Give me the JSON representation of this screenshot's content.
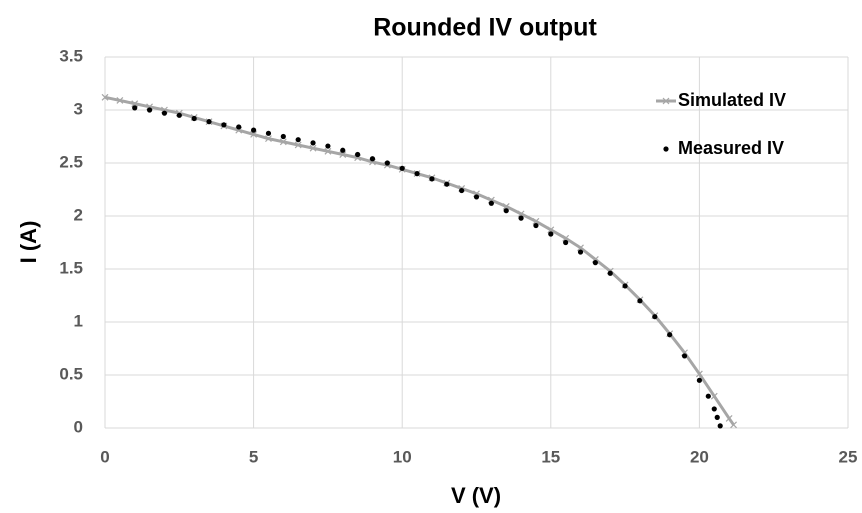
{
  "chart_data": {
    "type": "scatter",
    "title": "Rounded IV output",
    "x_label": "V (V)",
    "y_label": "I (A)",
    "xlim": [
      0,
      25
    ],
    "xticks": [
      0,
      5,
      10,
      15,
      20,
      25
    ],
    "ylim": [
      0,
      3.5
    ],
    "yticks": [
      0,
      0.5,
      1,
      1.5,
      2,
      2.5,
      3,
      3.5
    ],
    "grid": true,
    "legend": "upper right",
    "series": [
      {
        "name": "Simulated IV",
        "color": "#a6a6a6",
        "style": "line-x",
        "x": [
          0,
          0.5,
          1,
          1.5,
          2,
          2.5,
          3,
          3.5,
          4,
          4.5,
          5,
          5.5,
          6,
          6.5,
          7,
          7.5,
          8,
          8.5,
          9,
          9.5,
          10,
          10.5,
          11,
          11.5,
          12,
          12.5,
          13,
          13.5,
          14,
          14.5,
          15,
          15.5,
          16,
          16.5,
          17,
          17.5,
          18,
          18.5,
          19,
          19.5,
          20,
          20.5,
          21,
          21.15
        ],
        "values": [
          3.12,
          3.09,
          3.06,
          3.03,
          3.0,
          2.97,
          2.93,
          2.89,
          2.85,
          2.81,
          2.77,
          2.73,
          2.7,
          2.67,
          2.64,
          2.61,
          2.58,
          2.55,
          2.51,
          2.48,
          2.44,
          2.4,
          2.36,
          2.31,
          2.26,
          2.21,
          2.15,
          2.09,
          2.02,
          1.95,
          1.87,
          1.79,
          1.7,
          1.59,
          1.48,
          1.35,
          1.21,
          1.06,
          0.89,
          0.71,
          0.51,
          0.3,
          0.09,
          0.03
        ]
      },
      {
        "name": "Measured IV",
        "color": "#000000",
        "style": "dot",
        "x": [
          1,
          1.5,
          2,
          2.5,
          3,
          3.5,
          4,
          4.5,
          5,
          5.5,
          6,
          6.5,
          7,
          7.5,
          8,
          8.5,
          9,
          9.5,
          10,
          10.5,
          11,
          11.5,
          12,
          12.5,
          13,
          13.5,
          14,
          14.5,
          15,
          15.5,
          16,
          16.5,
          17,
          17.5,
          18,
          18.5,
          19,
          19.5,
          20,
          20.3,
          20.5,
          20.6,
          20.7
        ],
        "values": [
          3.02,
          3.0,
          2.97,
          2.95,
          2.92,
          2.89,
          2.86,
          2.84,
          2.81,
          2.78,
          2.75,
          2.72,
          2.69,
          2.66,
          2.62,
          2.58,
          2.54,
          2.5,
          2.45,
          2.4,
          2.35,
          2.3,
          2.24,
          2.18,
          2.12,
          2.05,
          1.98,
          1.91,
          1.83,
          1.75,
          1.66,
          1.56,
          1.46,
          1.34,
          1.2,
          1.05,
          0.88,
          0.68,
          0.45,
          0.3,
          0.18,
          0.1,
          0.02
        ]
      }
    ]
  }
}
